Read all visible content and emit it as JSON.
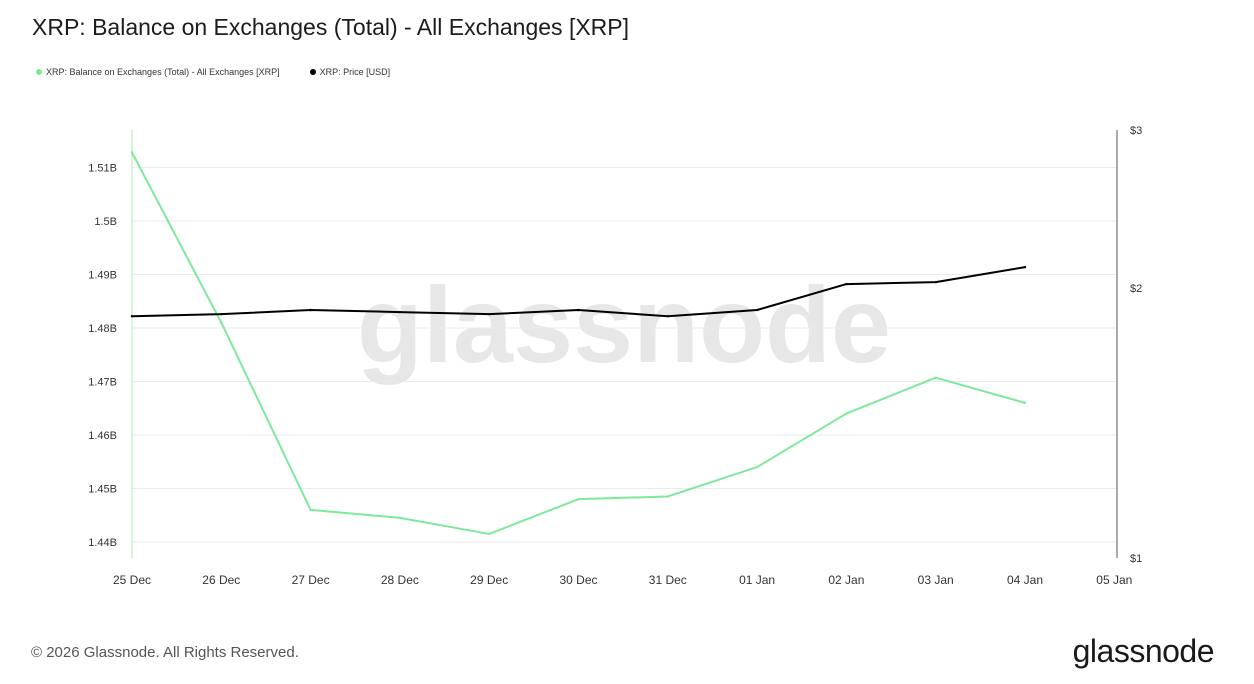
{
  "title": "XRP: Balance on Exchanges (Total) - All Exchanges [XRP]",
  "legend": [
    {
      "label": "XRP: Balance on Exchanges (Total) - All Exchanges [XRP]",
      "color": "#7ee99a"
    },
    {
      "label": "XRP: Price [USD]",
      "color": "#000000"
    }
  ],
  "watermark": "glassnode",
  "footer": {
    "copyright": "© 2026 Glassnode. All Rights Reserved.",
    "logo": "glassnode"
  },
  "chart_data": {
    "type": "line",
    "categories": [
      "25 Dec",
      "26 Dec",
      "27 Dec",
      "28 Dec",
      "29 Dec",
      "30 Dec",
      "31 Dec",
      "01 Jan",
      "02 Jan",
      "03 Jan",
      "04 Jan",
      "05 Jan"
    ],
    "y_left": {
      "ticks": [
        1.44,
        1.45,
        1.46,
        1.47,
        1.48,
        1.49,
        1.5,
        1.51
      ],
      "tick_labels": [
        "1.44B",
        "1.45B",
        "1.46B",
        "1.47B",
        "1.48B",
        "1.49B",
        "1.5B",
        "1.51B"
      ],
      "range": [
        1.437,
        1.517
      ]
    },
    "y_right": {
      "ticks": [
        1,
        2,
        3
      ],
      "tick_labels": [
        "$1",
        "$2",
        "$3"
      ],
      "range": [
        1,
        3
      ],
      "scale": "log"
    },
    "series": [
      {
        "name": "XRP: Balance on Exchanges (Total) - All Exchanges [XRP]",
        "axis": "left",
        "color": "#7ee99a",
        "values": [
          1.5128,
          1.481,
          1.446,
          1.4445,
          1.4415,
          1.448,
          1.4485,
          1.454,
          1.464,
          1.4707,
          1.466,
          null
        ]
      },
      {
        "name": "XRP: Price [USD]",
        "axis": "right",
        "color": "#000000",
        "values": [
          1.86,
          1.87,
          1.89,
          1.88,
          1.87,
          1.89,
          1.86,
          1.89,
          2.02,
          2.03,
          2.11,
          null
        ]
      }
    ],
    "grid": true
  }
}
